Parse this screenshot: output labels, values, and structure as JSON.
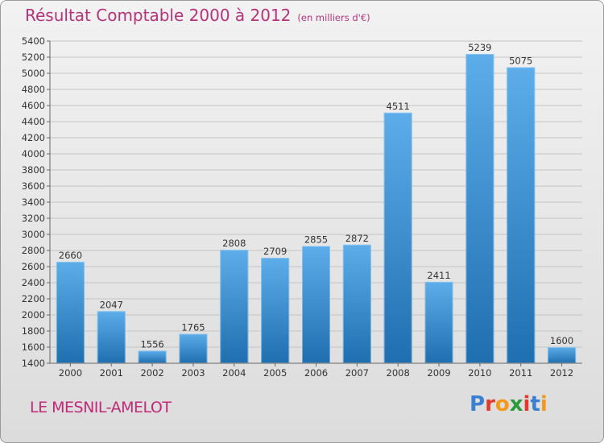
{
  "header": {
    "title": "Résultat Comptable 2000 à 2012",
    "subtitle": "(en milliers d'€)"
  },
  "footer": {
    "commune": "LE MESNIL-AMELOT",
    "logo_text": "Proxiti"
  },
  "colors": {
    "title": "#b5337a",
    "bar_top": "#5dadea",
    "bar_bottom": "#1f6fb0",
    "logo_letters": [
      "#3a7fd0",
      "#e23a2c",
      "#f39a1c",
      "#2a9a3a",
      "#e23a2c",
      "#3a7fd0",
      "#f39a1c"
    ]
  },
  "chart_data": {
    "type": "bar",
    "title": "Résultat Comptable 2000 à 2012",
    "subtitle": "(en milliers d'€)",
    "categories": [
      "2000",
      "2001",
      "2002",
      "2003",
      "2004",
      "2005",
      "2006",
      "2007",
      "2008",
      "2009",
      "2010",
      "2011",
      "2012"
    ],
    "values": [
      2660,
      2047,
      1556,
      1765,
      2808,
      2709,
      2855,
      2872,
      4511,
      2411,
      5239,
      5075,
      1600
    ],
    "ylim": [
      1400,
      5400
    ],
    "yticks": [
      1400,
      1600,
      1800,
      2000,
      2200,
      2400,
      2600,
      2800,
      3000,
      3200,
      3400,
      3600,
      3800,
      4000,
      4200,
      4400,
      4600,
      4800,
      5000,
      5200,
      5400
    ],
    "grid": true,
    "data_labels": true
  }
}
